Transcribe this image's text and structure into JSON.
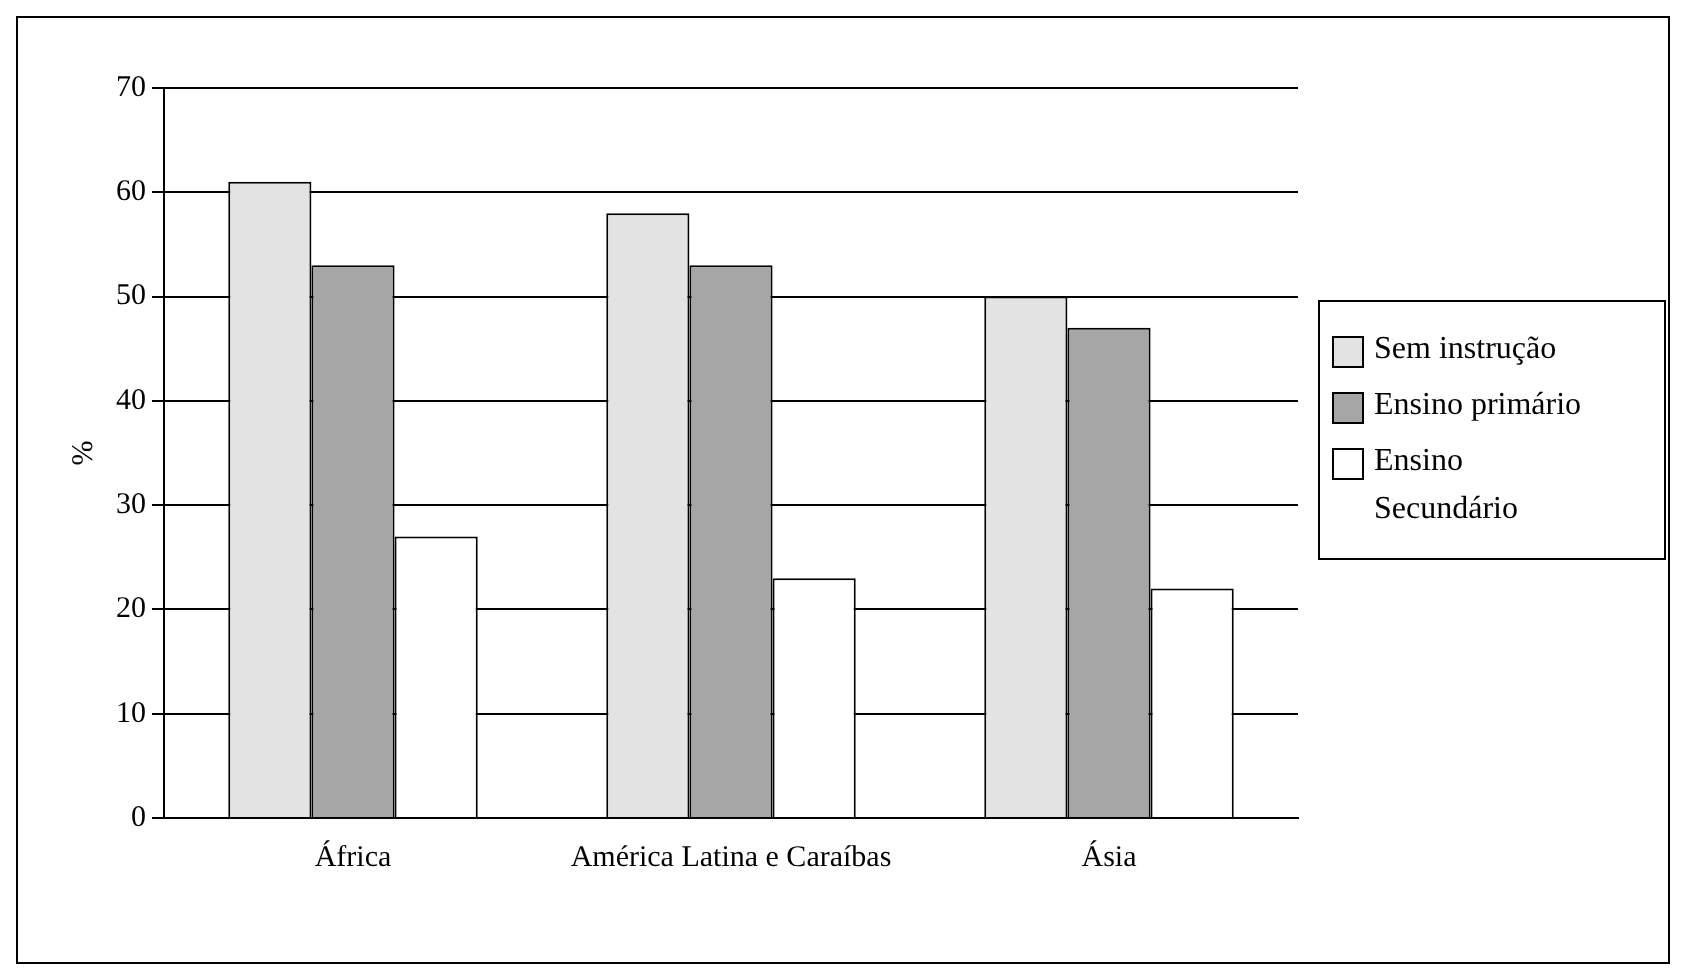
{
  "chart_data": {
    "type": "bar",
    "ylabel": "%",
    "categories": [
      "África",
      "América Latina e Caraíbas",
      "Ásia"
    ],
    "series": [
      {
        "name": "Sem instrução",
        "color": "#e3e3e3",
        "values": [
          61,
          58,
          50
        ]
      },
      {
        "name": "Ensino primário",
        "color": "#a6a6a6",
        "values": [
          53,
          53,
          47
        ]
      },
      {
        "name": "Ensino Secundário",
        "color": "#ffffff",
        "values": [
          27,
          23,
          22
        ]
      }
    ],
    "ylim": [
      0,
      70
    ],
    "yticks": [
      0,
      10,
      20,
      30,
      40,
      50,
      60,
      70
    ],
    "grid": "y",
    "legend": "right"
  }
}
